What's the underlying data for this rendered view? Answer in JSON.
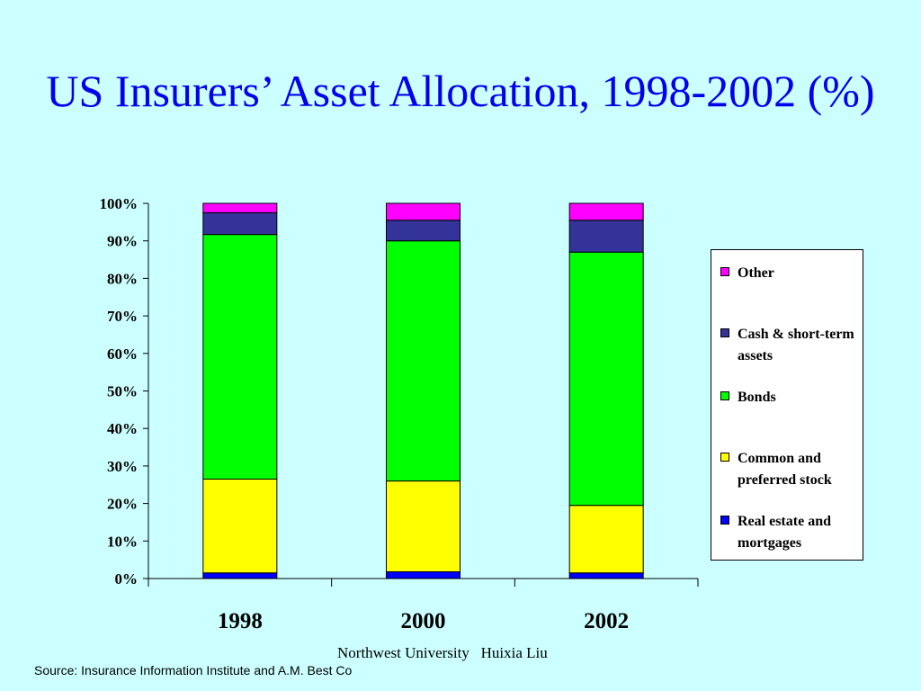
{
  "slide": {
    "title": "US Insurers’ Asset Allocation, 1998-2002 (%)",
    "footer": "Northwest University   Huixia Liu",
    "source": "Source: Insurance Information Institute and A.M. Best Co"
  },
  "chart_data": {
    "type": "bar",
    "stacked": true,
    "categories": [
      "1998",
      "2000",
      "2002"
    ],
    "ylim": [
      0,
      100
    ],
    "yticks": [
      0,
      10,
      20,
      30,
      40,
      50,
      60,
      70,
      80,
      90,
      100
    ],
    "ytick_labels": [
      "0%",
      "10%",
      "20%",
      "30%",
      "40%",
      "50%",
      "60%",
      "70%",
      "80%",
      "90%",
      "100%"
    ],
    "grid": false,
    "legend_position": "right",
    "series": [
      {
        "name": "Real estate and mortgages",
        "values": [
          1.5,
          1.8,
          1.5
        ],
        "color": "#0000FF"
      },
      {
        "name": "Common and preferred stock",
        "values": [
          25.0,
          24.2,
          18.0
        ],
        "color": "#FFFF00"
      },
      {
        "name": "Bonds",
        "values": [
          65.2,
          64.0,
          67.5
        ],
        "color": "#00FF00"
      },
      {
        "name": "Cash & short-term assets",
        "values": [
          5.8,
          5.5,
          8.5
        ],
        "color": "#333399"
      },
      {
        "name": "Other",
        "values": [
          2.5,
          4.5,
          4.5
        ],
        "color": "#FF00FF"
      }
    ]
  }
}
